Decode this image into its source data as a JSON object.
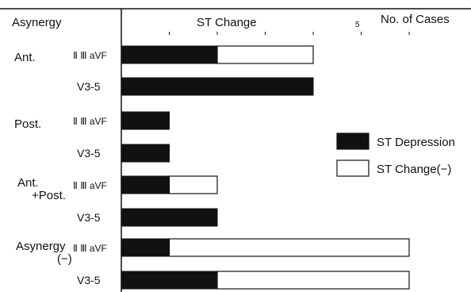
{
  "chart_data": {
    "type": "bar",
    "orientation": "horizontal",
    "stacked": true,
    "header_left": "Asynergy",
    "header_center": "ST Change",
    "header_right": "No. of Cases",
    "x_tick_label": "5",
    "xlim": [
      0,
      6
    ],
    "grid": false,
    "groups": [
      "Ant.",
      "Post.",
      "Ant.\n+Post.",
      "Asynergy\n(−)"
    ],
    "leads": [
      "Ⅱ Ⅲ aVF",
      "V3-5"
    ],
    "rows": [
      {
        "group": "Ant.",
        "lead": "Ⅱ Ⅲ aVF",
        "depression": 2,
        "no_change": 2
      },
      {
        "group": "Ant.",
        "lead": "V3-5",
        "depression": 4,
        "no_change": 0
      },
      {
        "group": "Post.",
        "lead": "Ⅱ Ⅲ aVF",
        "depression": 1,
        "no_change": 0
      },
      {
        "group": "Post.",
        "lead": "V3-5",
        "depression": 1,
        "no_change": 0
      },
      {
        "group": "Ant.\n+Post.",
        "lead": "Ⅱ Ⅲ aVF",
        "depression": 1,
        "no_change": 1
      },
      {
        "group": "Ant.\n+Post.",
        "lead": "V3-5",
        "depression": 2,
        "no_change": 0
      },
      {
        "group": "Asynergy\n(−)",
        "lead": "Ⅱ Ⅲ aVF",
        "depression": 1,
        "no_change": 5
      },
      {
        "group": "Asynergy\n(−)",
        "lead": "V3-5",
        "depression": 2,
        "no_change": 4
      }
    ],
    "legend": [
      {
        "key": "depression",
        "label": "ST Depression",
        "color": "#111111"
      },
      {
        "key": "no_change",
        "label": "ST Change(−)",
        "color": "#ffffff"
      }
    ],
    "legend_position": "right"
  }
}
